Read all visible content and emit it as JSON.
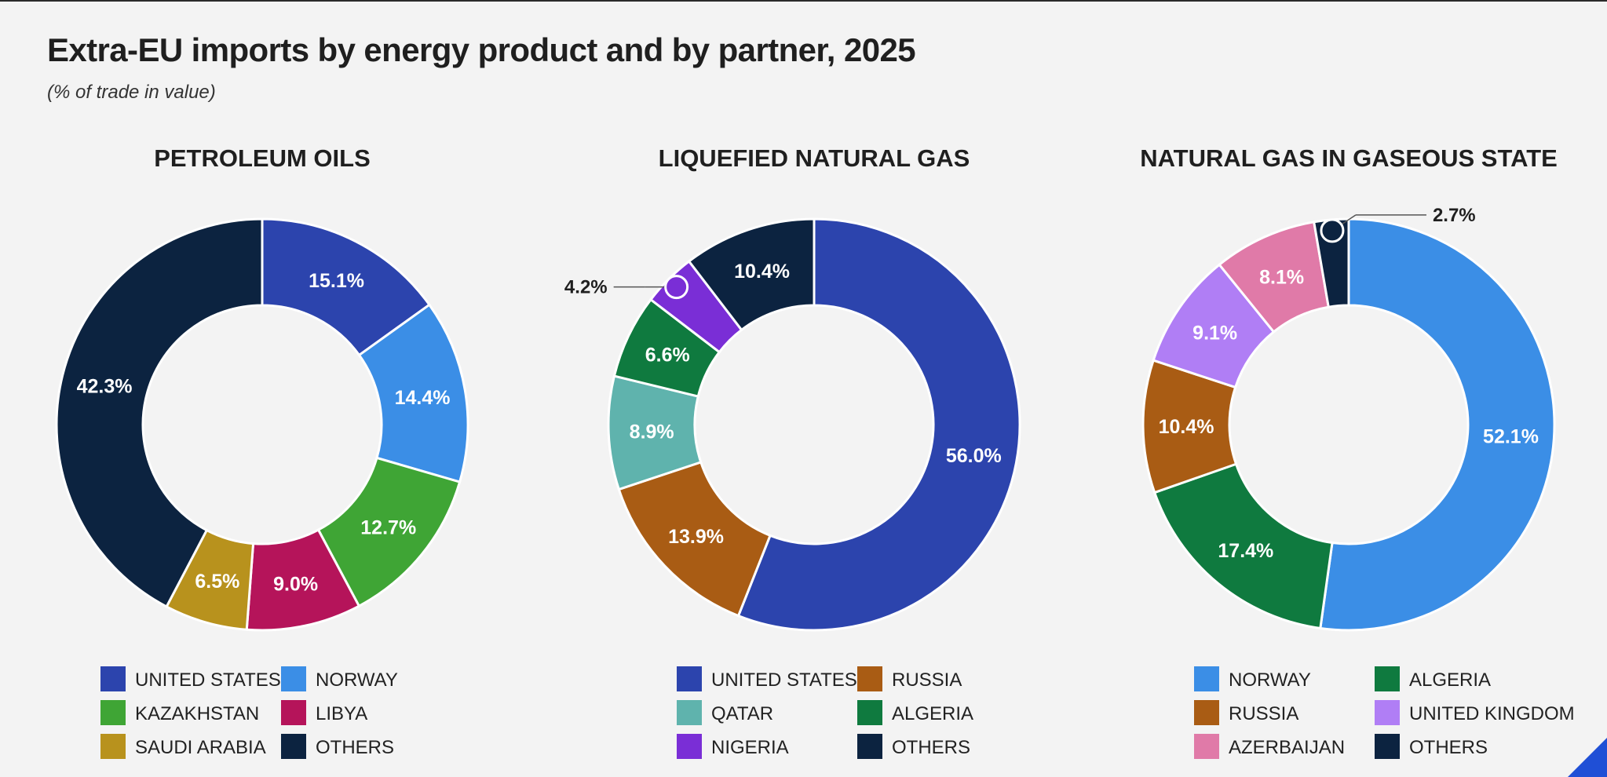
{
  "title": "Extra-EU imports by energy product and by partner, 2025",
  "subtitle": "(% of trade in value)",
  "chart_data": [
    {
      "type": "donut",
      "title": "PETROLEUM OILS",
      "unit": "%",
      "slices": [
        {
          "name": "UNITED STATES",
          "value": 15.1,
          "label": "15.1%",
          "color": "#2c44ad"
        },
        {
          "name": "NORWAY",
          "value": 14.4,
          "label": "14.4%",
          "color": "#3b8ee6"
        },
        {
          "name": "KAZAKHSTAN",
          "value": 12.7,
          "label": "12.7%",
          "color": "#3fa535"
        },
        {
          "name": "LIBYA",
          "value": 9.0,
          "label": "9.0%",
          "color": "#b5145a"
        },
        {
          "name": "SAUDI ARABIA",
          "value": 6.5,
          "label": "6.5%",
          "color": "#b8921d"
        },
        {
          "name": "OTHERS",
          "value": 42.3,
          "label": "42.3%",
          "color": "#0c2340"
        }
      ],
      "legend": [
        "UNITED STATES",
        "NORWAY",
        "KAZAKHSTAN",
        "LIBYA",
        "SAUDI ARABIA",
        "OTHERS"
      ]
    },
    {
      "type": "donut",
      "title": "LIQUEFIED NATURAL GAS",
      "unit": "%",
      "slices": [
        {
          "name": "UNITED STATES",
          "value": 56.0,
          "label": "56.0%",
          "color": "#2c44ad"
        },
        {
          "name": "RUSSIA",
          "value": 13.9,
          "label": "13.9%",
          "color": "#a95c14"
        },
        {
          "name": "QATAR",
          "value": 8.9,
          "label": "8.9%",
          "color": "#5fb3ad"
        },
        {
          "name": "ALGERIA",
          "value": 6.6,
          "label": "6.6%",
          "color": "#0f7a3f"
        },
        {
          "name": "NIGERIA",
          "value": 4.2,
          "label": "4.2%",
          "color": "#7a2ed6"
        },
        {
          "name": "OTHERS",
          "value": 10.4,
          "label": "10.4%",
          "color": "#0c2340"
        }
      ],
      "legend": [
        "UNITED STATES",
        "RUSSIA",
        "QATAR",
        "ALGERIA",
        "NIGERIA",
        "OTHERS"
      ]
    },
    {
      "type": "donut",
      "title": "NATURAL GAS IN GASEOUS STATE",
      "unit": "%",
      "slices": [
        {
          "name": "NORWAY",
          "value": 52.1,
          "label": "52.1%",
          "color": "#3b8ee6"
        },
        {
          "name": "ALGERIA",
          "value": 17.4,
          "label": "17.4%",
          "color": "#0f7a3f"
        },
        {
          "name": "RUSSIA",
          "value": 10.4,
          "label": "10.4%",
          "color": "#a95c14"
        },
        {
          "name": "UNITED KINGDOM",
          "value": 9.1,
          "label": "9.1%",
          "color": "#b07ef5"
        },
        {
          "name": "AZERBAIJAN",
          "value": 8.1,
          "label": "8.1%",
          "color": "#e07aa8"
        },
        {
          "name": "OTHERS",
          "value": 2.7,
          "label": "2.7%",
          "color": "#0c2340"
        }
      ],
      "legend": [
        "NORWAY",
        "ALGERIA",
        "RUSSIA",
        "UNITED KINGDOM",
        "AZERBAIJAN",
        "OTHERS"
      ]
    }
  ]
}
